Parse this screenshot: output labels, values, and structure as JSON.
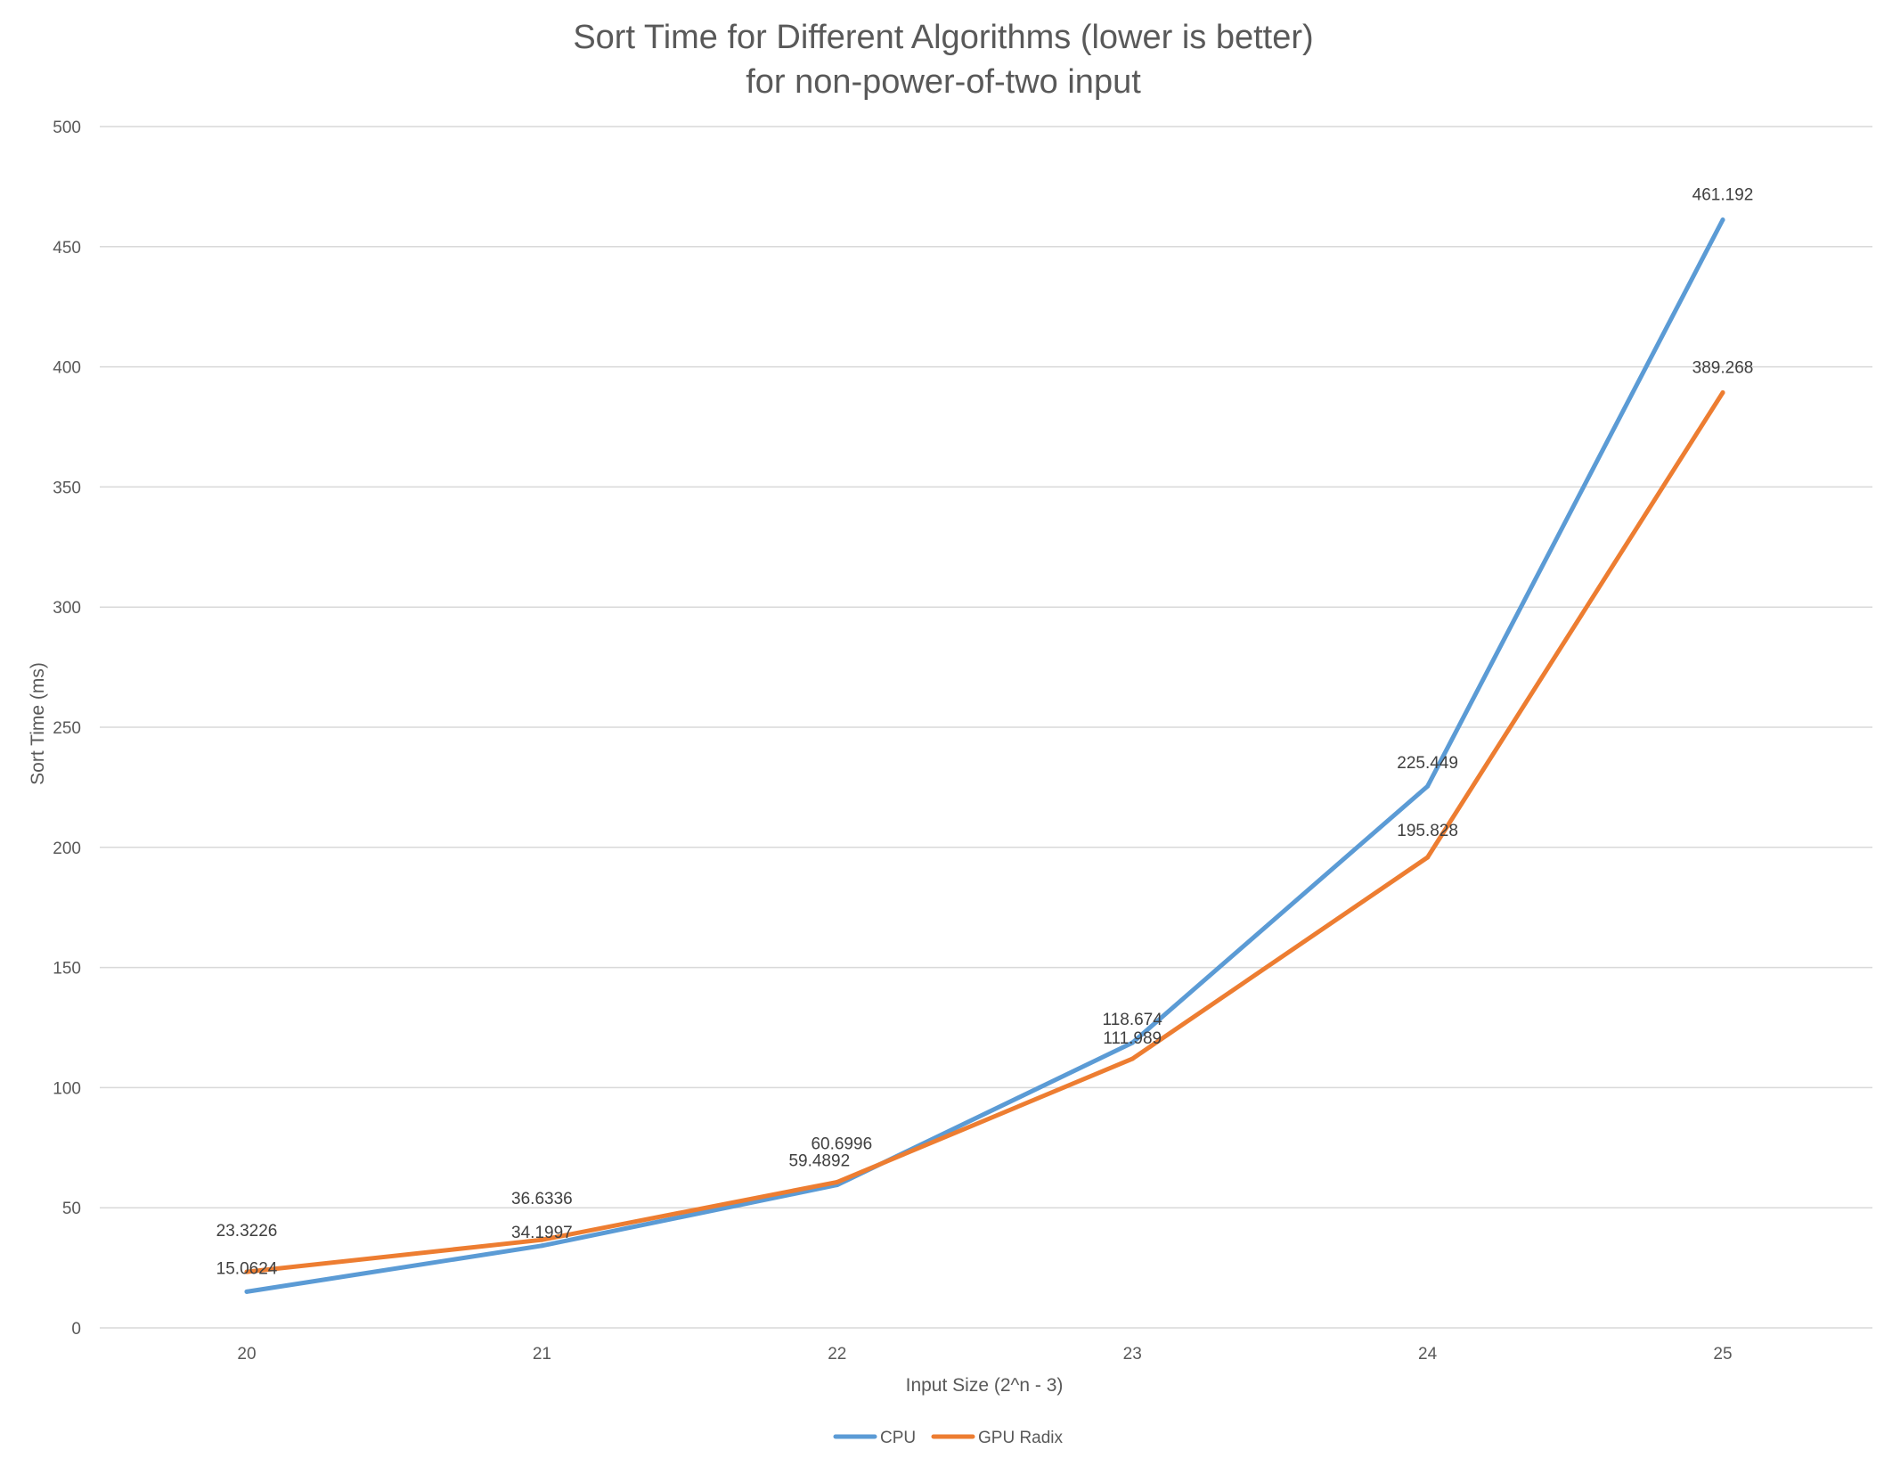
{
  "chart_data": {
    "type": "line",
    "title": [
      "Sort Time for Different Algorithms (lower is better)",
      "for non-power-of-two input"
    ],
    "xlabel": "Input Size (2^n - 3)",
    "ylabel": "Sort Time (ms)",
    "categories": [
      "20",
      "21",
      "22",
      "23",
      "24",
      "25"
    ],
    "ylim": [
      0,
      500
    ],
    "yticks": [
      "0",
      "50",
      "100",
      "150",
      "200",
      "250",
      "300",
      "350",
      "400",
      "450",
      "500"
    ],
    "grid": true,
    "legend_position": "bottom",
    "series": [
      {
        "name": "CPU",
        "color": "#5b9bd5",
        "values": [
          15.0624,
          34.1997,
          59.4892,
          118.674,
          225.449,
          461.192
        ],
        "labels": [
          "15.0624",
          "34.1997",
          "59.4892",
          "118.674",
          "225.449",
          "461.192"
        ]
      },
      {
        "name": "GPU Radix",
        "color": "#ed7d31",
        "values": [
          23.3226,
          36.6336,
          60.6996,
          111.989,
          195.828,
          389.268
        ],
        "labels": [
          "23.3226",
          "36.6336",
          "60.6996",
          "111.989",
          "195.828",
          "389.268"
        ]
      }
    ]
  }
}
